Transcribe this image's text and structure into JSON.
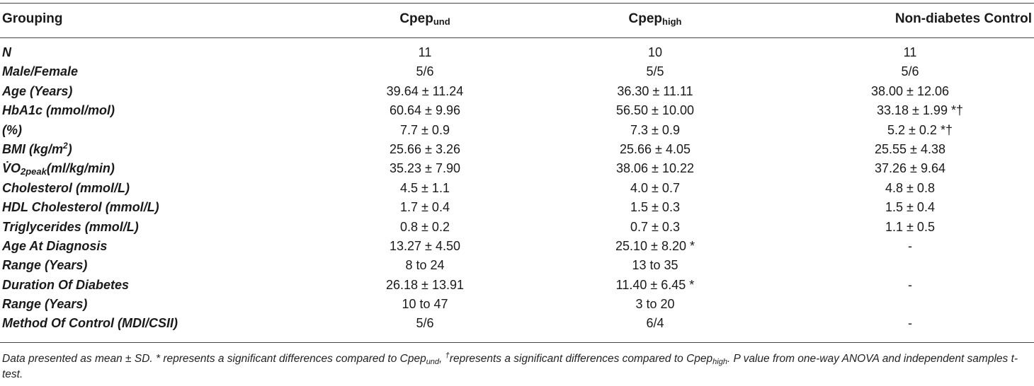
{
  "table": {
    "header": {
      "grouping": "Grouping",
      "col1_base": "Cpep",
      "col1_sub": "und",
      "col2_base": "Cpep",
      "col2_sub": "high",
      "col3": "Non-diabetes Control"
    },
    "rows": [
      {
        "label": "N",
        "v1": "11",
        "v2": "10",
        "v3": "11"
      },
      {
        "label": "Male/Female",
        "v1": "5/6",
        "v2": "5/5",
        "v3": "5/6"
      },
      {
        "label": "Age (Years)",
        "v1": "39.64 ± 11.24",
        "v2": "36.30 ± 11.11",
        "v3": "38.00 ± 12.06"
      },
      {
        "label": "HbA1c (mmol/mol)",
        "v1": "60.64 ± 9.96",
        "v2": "56.50 ± 10.00",
        "v3": "33.18 ± 1.99 *†"
      },
      {
        "label": "(%)",
        "v1": "7.7 ± 0.9",
        "v2": "7.3 ± 0.9",
        "v3": "5.2 ± 0.2 *†"
      },
      {
        "label_base": "BMI (kg/m",
        "label_sup": "2",
        "label_end": ")",
        "v1": "25.66 ± 3.26",
        "v2": "25.66 ± 4.05",
        "v3": "25.55 ± 4.38"
      },
      {
        "label_base": "V̇O",
        "label_sub": "2peak",
        "label_end": "(ml/kg/min)",
        "v1": "35.23 ± 7.90",
        "v2": "38.06 ± 10.22",
        "v3": "37.26 ± 9.64"
      },
      {
        "label": "Cholesterol (mmol/L)",
        "v1": "4.5 ± 1.1",
        "v2": "4.0 ± 0.7",
        "v3": "4.8 ± 0.8"
      },
      {
        "label": "HDL Cholesterol (mmol/L)",
        "v1": "1.7 ± 0.4",
        "v2": "1.5 ± 0.3",
        "v3": "1.5 ± 0.4"
      },
      {
        "label": "Triglycerides (mmol/L)",
        "v1": "0.8 ± 0.2",
        "v2": "0.7 ± 0.3",
        "v3": "1.1 ± 0.5"
      },
      {
        "label": "Age At Diagnosis",
        "v1": "13.27 ± 4.50",
        "v2": "25.10 ± 8.20 *",
        "v3": "-"
      },
      {
        "label": "Range (Years)",
        "v1": "8 to 24",
        "v2": "13 to 35",
        "v3": ""
      },
      {
        "label": "Duration Of Diabetes",
        "v1": "26.18 ± 13.91",
        "v2": "11.40 ± 6.45 *",
        "v3": "-"
      },
      {
        "label": "Range (Years)",
        "v1": "10 to 47",
        "v2": "3 to 20",
        "v3": ""
      },
      {
        "label": "Method Of Control (MDI/CSII)",
        "v1": "5/6",
        "v2": "6/4",
        "v3": "-"
      }
    ]
  },
  "footnote": {
    "p1": "Data presented as mean ± SD. * represents a significant differences compared to Cpep",
    "s1": "und",
    "p2": ", ",
    "sup": "†",
    "p3": "represents a significant differences compared to Cpep",
    "s2": "high",
    "p4": ". P value from one-way ANOVA and independent samples t-test."
  }
}
